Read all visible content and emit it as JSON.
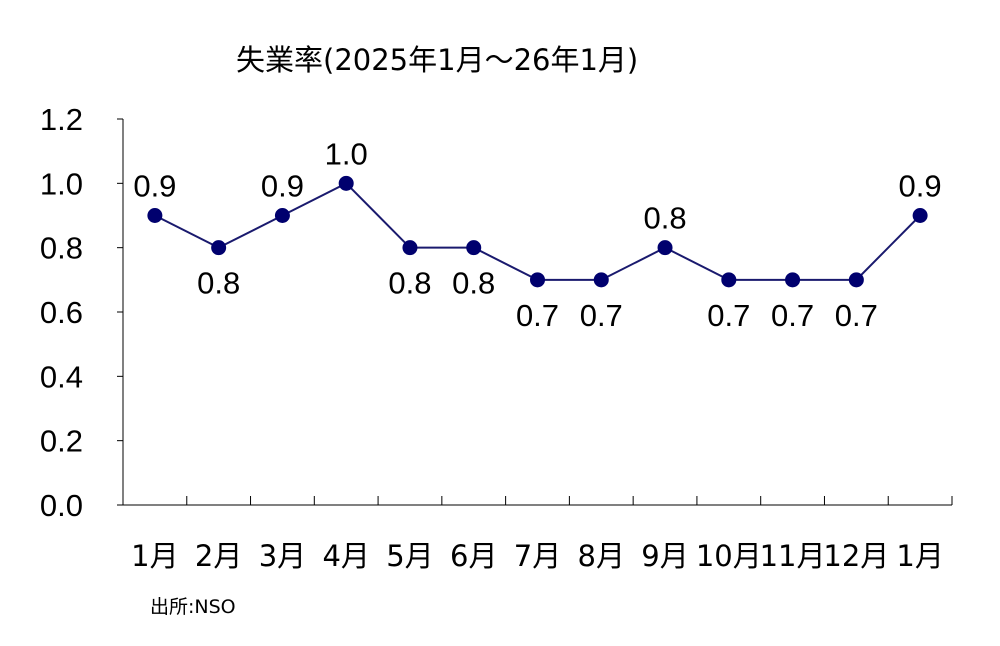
{
  "chart_data": {
    "type": "line",
    "title": "失業率(2025年1月～26年1月)",
    "categories": [
      "1月",
      "2月",
      "3月",
      "4月",
      "5月",
      "6月",
      "7月",
      "8月",
      "9月",
      "10月",
      "11月",
      "12月",
      "1月"
    ],
    "values": [
      0.9,
      0.8,
      0.9,
      1.0,
      0.8,
      0.8,
      0.7,
      0.7,
      0.8,
      0.7,
      0.7,
      0.7,
      0.9
    ],
    "data_labels": [
      "0.9",
      "0.8",
      "0.9",
      "1.0",
      "0.8",
      "0.8",
      "0.7",
      "0.7",
      "0.8",
      "0.7",
      "0.7",
      "0.7",
      "0.9"
    ],
    "label_positions": [
      "above",
      "below",
      "above",
      "above",
      "below",
      "below",
      "below",
      "below",
      "above",
      "below",
      "below",
      "below",
      "above"
    ],
    "ylim": [
      0,
      1.2
    ],
    "yticks": [
      "0.0",
      "0.2",
      "0.4",
      "0.6",
      "0.8",
      "1.0",
      "1.2"
    ],
    "xlabel": "",
    "ylabel": "",
    "grid": false,
    "line_color": "#1a1a6e",
    "marker_color": "#00006e"
  },
  "source": "出所:NSO"
}
